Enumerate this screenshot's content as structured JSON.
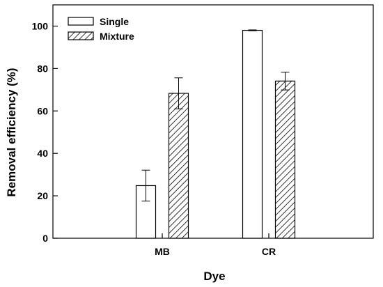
{
  "chart_data": {
    "type": "bar",
    "title": "",
    "xlabel": "Dye",
    "ylabel": "Removal efficiency (%)",
    "ylim": [
      0,
      110
    ],
    "yticks": [
      "0",
      "20",
      "40",
      "60",
      "80",
      "100"
    ],
    "categories": [
      "MB",
      "CR"
    ],
    "series": [
      {
        "name": "Single",
        "values": [
          24.8,
          98.0
        ],
        "errors": [
          7.3,
          0.2
        ],
        "pattern": "open"
      },
      {
        "name": "Mixture",
        "values": [
          68.3,
          74.1
        ],
        "errors": [
          7.3,
          4.2
        ],
        "pattern": "hatched"
      }
    ],
    "legend_position": "top-left",
    "grid": false
  }
}
